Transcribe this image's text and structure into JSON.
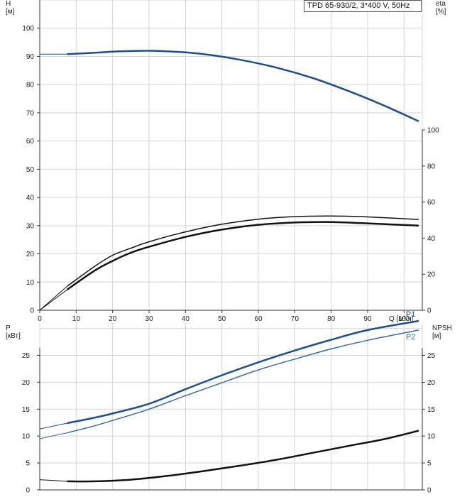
{
  "title": "TPD 65-930/2, 3*400 V, 50Hz",
  "chart_data": [
    {
      "type": "line",
      "panel": "head-efficiency",
      "title": "TPD 65-930/2, 3*400 V, 50Hz",
      "xlabel": "Q [м³/ч]",
      "ylabel": "H\n[м]",
      "y2label": "eta\n[%]",
      "xlim": [
        0,
        105
      ],
      "ylim": [
        0,
        110
      ],
      "y2lim": [
        0,
        100
      ],
      "xticks": [
        "0",
        "10",
        "20",
        "30",
        "40",
        "50",
        "60",
        "70",
        "80",
        "90",
        "100"
      ],
      "yticks": [
        "0",
        "10",
        "20",
        "30",
        "40",
        "50",
        "60",
        "70",
        "80",
        "90",
        "100"
      ],
      "y2ticks": [
        "0",
        "20",
        "40",
        "60",
        "80",
        "100"
      ],
      "grid": true,
      "series": [
        {
          "key": "h-curve",
          "axis": "left",
          "color": "#1f4e8c",
          "x": [
            0,
            7.5,
            15,
            22,
            30,
            38,
            45,
            55,
            65,
            75,
            85,
            95,
            104
          ],
          "y": [
            90.8,
            90.8,
            91.3,
            91.8,
            92.0,
            91.6,
            90.8,
            88.8,
            86.0,
            82.3,
            77.6,
            72.3,
            67.0
          ]
        },
        {
          "key": "eta-upper",
          "axis": "left",
          "color": "#111111",
          "x": [
            0,
            7.5,
            15,
            20,
            25,
            30,
            40,
            50,
            60,
            70,
            80,
            90,
            104
          ],
          "y": [
            0,
            8.5,
            15.5,
            19.5,
            22.0,
            24.3,
            27.8,
            30.5,
            32.3,
            33.2,
            33.4,
            33.1,
            32.2
          ]
        },
        {
          "key": "eta-lower",
          "axis": "left",
          "color": "#111111",
          "x": [
            0,
            7.5,
            15,
            20,
            25,
            30,
            40,
            50,
            60,
            70,
            80,
            90,
            104
          ],
          "y": [
            0,
            7.3,
            14.0,
            17.5,
            20.4,
            22.5,
            26.0,
            28.6,
            30.3,
            31.1,
            31.3,
            30.8,
            30.0
          ]
        }
      ]
    },
    {
      "type": "line",
      "panel": "power-npsh",
      "xlabel": "",
      "ylabel": "P\n[кВт]",
      "y2label": "NPSH\n[м]",
      "xlim": [
        0,
        105
      ],
      "ylim": [
        0,
        31
      ],
      "y2lim": [
        0,
        31
      ],
      "yticks": [
        "0",
        "5",
        "10",
        "15",
        "20",
        "25"
      ],
      "y2ticks": [
        "0",
        "5",
        "10",
        "15",
        "20",
        "25"
      ],
      "grid": true,
      "series": [
        {
          "name": "P1",
          "key": "p1",
          "color": "#1f4e8c",
          "x": [
            0,
            7.5,
            15,
            20,
            30,
            40,
            50,
            60,
            70,
            80,
            90,
            104
          ],
          "y": [
            11.3,
            12.4,
            13.4,
            14.2,
            16.0,
            18.7,
            21.3,
            23.7,
            25.9,
            27.9,
            29.7,
            31.4
          ]
        },
        {
          "name": "P2",
          "key": "p2",
          "color": "#3a6aa5",
          "x": [
            0,
            7.5,
            15,
            20,
            30,
            40,
            50,
            60,
            70,
            80,
            90,
            104
          ],
          "y": [
            9.5,
            10.6,
            11.9,
            12.9,
            15.0,
            17.5,
            19.9,
            22.3,
            24.3,
            26.2,
            27.8,
            29.7
          ]
        },
        {
          "name": "NPSH",
          "key": "npsh",
          "color": "#111111",
          "x": [
            0,
            7.5,
            15,
            25,
            35,
            45,
            55,
            65,
            75,
            85,
            95,
            104
          ],
          "y": [
            1.9,
            1.6,
            1.6,
            1.9,
            2.6,
            3.5,
            4.5,
            5.6,
            6.9,
            8.2,
            9.5,
            11.0
          ]
        }
      ]
    }
  ]
}
